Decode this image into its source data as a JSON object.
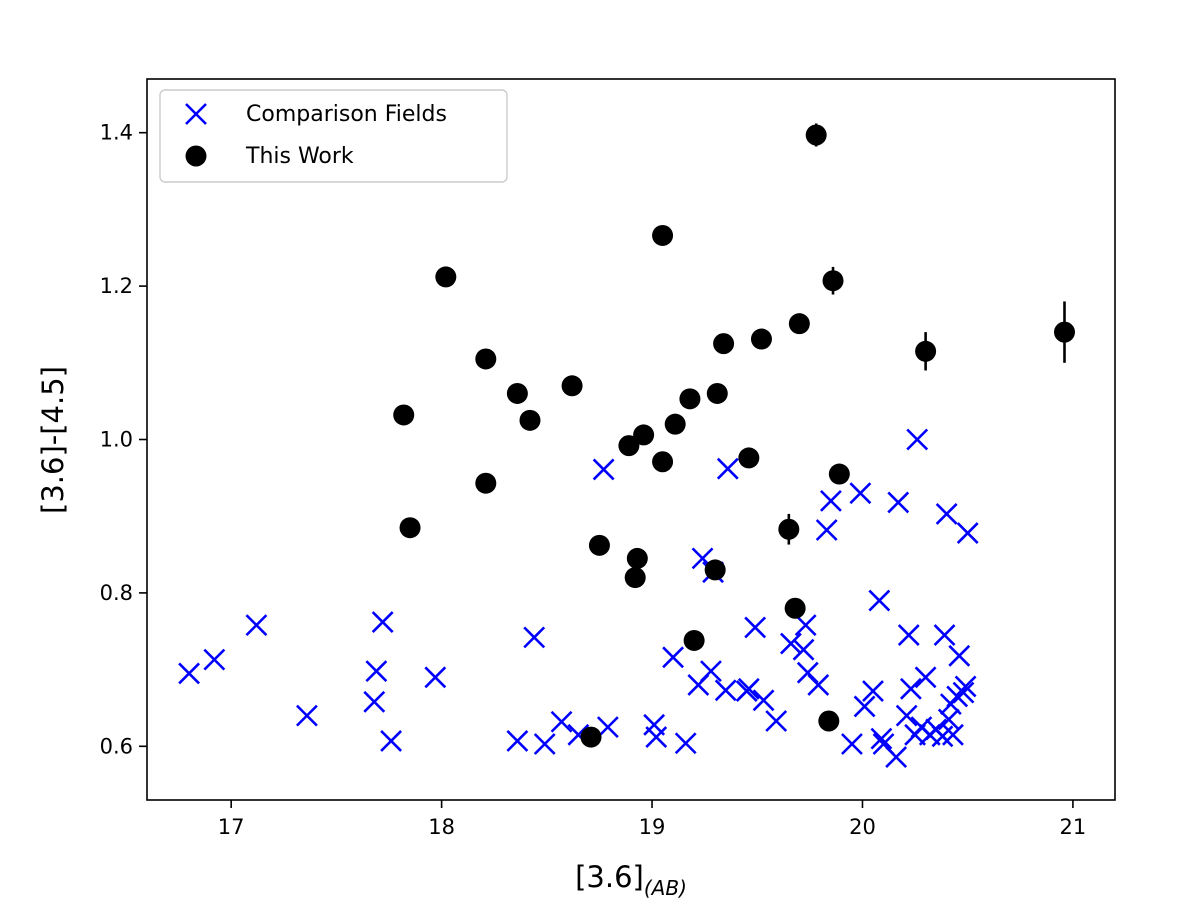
{
  "chart_data": {
    "type": "scatter",
    "xlabel_main": "[3.6]",
    "xlabel_sub": "(AB)",
    "ylabel": "[3.6]-[4.5]",
    "xlim": [
      16.6,
      21.2
    ],
    "ylim": [
      0.53,
      1.47
    ],
    "xticks": [
      17,
      18,
      19,
      20,
      21
    ],
    "yticks": [
      0.6,
      0.8,
      1.0,
      1.2,
      1.4
    ],
    "xtick_labels": [
      "17",
      "18",
      "19",
      "20",
      "21"
    ],
    "ytick_labels": [
      "0.6",
      "0.8",
      "1.0",
      "1.2",
      "1.4"
    ],
    "legend_position": "upper-left",
    "series": [
      {
        "name": "Comparison Fields",
        "marker": "x",
        "color": "#0000ff",
        "points": [
          [
            16.8,
            0.695
          ],
          [
            16.92,
            0.713
          ],
          [
            17.12,
            0.758
          ],
          [
            17.36,
            0.64
          ],
          [
            17.68,
            0.658
          ],
          [
            17.69,
            0.698
          ],
          [
            17.72,
            0.762
          ],
          [
            17.76,
            0.607
          ],
          [
            17.97,
            0.69
          ],
          [
            18.36,
            0.607
          ],
          [
            18.44,
            0.742
          ],
          [
            18.49,
            0.603
          ],
          [
            18.57,
            0.632
          ],
          [
            18.65,
            0.615
          ],
          [
            18.79,
            0.625
          ],
          [
            18.77,
            0.961
          ],
          [
            19.01,
            0.628
          ],
          [
            19.02,
            0.612
          ],
          [
            19.1,
            0.716
          ],
          [
            19.16,
            0.604
          ],
          [
            19.22,
            0.68
          ],
          [
            19.24,
            0.845
          ],
          [
            19.28,
            0.698
          ],
          [
            19.29,
            0.827
          ],
          [
            19.35,
            0.673
          ],
          [
            19.36,
            0.962
          ],
          [
            19.45,
            0.672
          ],
          [
            19.46,
            0.675
          ],
          [
            19.49,
            0.755
          ],
          [
            19.53,
            0.66
          ],
          [
            19.59,
            0.633
          ],
          [
            19.66,
            0.734
          ],
          [
            19.72,
            0.726
          ],
          [
            19.73,
            0.758
          ],
          [
            19.74,
            0.696
          ],
          [
            19.79,
            0.68
          ],
          [
            19.83,
            0.882
          ],
          [
            19.85,
            0.92
          ],
          [
            19.95,
            0.603
          ],
          [
            19.99,
            0.93
          ],
          [
            20.01,
            0.652
          ],
          [
            20.05,
            0.672
          ],
          [
            20.08,
            0.79
          ],
          [
            20.09,
            0.61
          ],
          [
            20.1,
            0.603
          ],
          [
            20.16,
            0.586
          ],
          [
            20.17,
            0.918
          ],
          [
            20.21,
            0.64
          ],
          [
            20.22,
            0.745
          ],
          [
            20.23,
            0.675
          ],
          [
            20.25,
            0.615
          ],
          [
            20.26,
            1.0
          ],
          [
            20.28,
            0.625
          ],
          [
            20.3,
            0.69
          ],
          [
            20.32,
            0.615
          ],
          [
            20.35,
            0.622
          ],
          [
            20.38,
            0.613
          ],
          [
            20.39,
            0.745
          ],
          [
            20.4,
            0.903
          ],
          [
            20.41,
            0.635
          ],
          [
            20.42,
            0.655
          ],
          [
            20.43,
            0.615
          ],
          [
            20.45,
            0.665
          ],
          [
            20.46,
            0.718
          ],
          [
            20.48,
            0.67
          ],
          [
            20.49,
            0.678
          ],
          [
            20.5,
            0.878
          ]
        ]
      },
      {
        "name": "This Work",
        "marker": "o",
        "color": "#000000",
        "points": [
          [
            17.82,
            1.032,
            0.008
          ],
          [
            17.85,
            0.885,
            0.008
          ],
          [
            18.02,
            1.212,
            0.008
          ],
          [
            18.21,
            1.105,
            0.008
          ],
          [
            18.21,
            0.943,
            0.008
          ],
          [
            18.36,
            1.06,
            0.008
          ],
          [
            18.42,
            1.025,
            0.008
          ],
          [
            18.62,
            1.07,
            0.008
          ],
          [
            18.71,
            0.612,
            0.008
          ],
          [
            18.75,
            0.862,
            0.008
          ],
          [
            18.89,
            0.992,
            0.008
          ],
          [
            18.92,
            0.82,
            0.008
          ],
          [
            18.93,
            0.845,
            0.008
          ],
          [
            18.96,
            1.006,
            0.008
          ],
          [
            19.05,
            1.266,
            0.008
          ],
          [
            19.05,
            0.971,
            0.008
          ],
          [
            19.11,
            1.02,
            0.008
          ],
          [
            19.18,
            1.053,
            0.008
          ],
          [
            19.2,
            0.738,
            0.008
          ],
          [
            19.3,
            0.83,
            0.008
          ],
          [
            19.31,
            1.06,
            0.008
          ],
          [
            19.34,
            1.125,
            0.008
          ],
          [
            19.46,
            0.976,
            0.008
          ],
          [
            19.52,
            1.131,
            0.008
          ],
          [
            19.65,
            0.883,
            0.02
          ],
          [
            19.68,
            0.78,
            0.012
          ],
          [
            19.7,
            1.151,
            0.008
          ],
          [
            19.78,
            1.397,
            0.015
          ],
          [
            19.84,
            0.633,
            0.008
          ],
          [
            19.86,
            1.207,
            0.018
          ],
          [
            19.89,
            0.955,
            0.008
          ],
          [
            20.3,
            1.115,
            0.025
          ],
          [
            20.96,
            1.14,
            0.04
          ]
        ]
      }
    ]
  }
}
